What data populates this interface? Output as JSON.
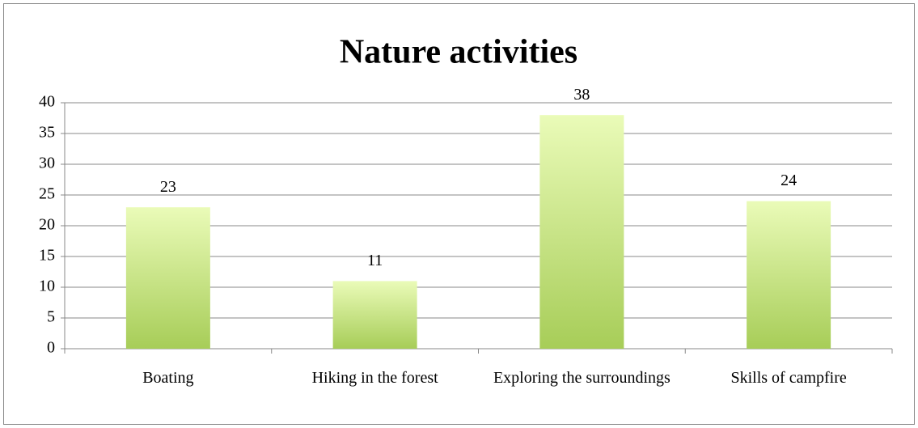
{
  "chart_data": {
    "type": "bar",
    "title": "Nature activities",
    "categories": [
      "Boating",
      "Hiking in the forest",
      "Exploring the surroundings",
      "Skills of campfire"
    ],
    "values": [
      23,
      11,
      38,
      24
    ],
    "gradient": [
      "#eafbb8",
      "#a7cd58"
    ],
    "ylim": [
      0,
      40
    ],
    "yticks": [
      0,
      5,
      10,
      15,
      20,
      25,
      30,
      35,
      40
    ],
    "grid": true
  }
}
